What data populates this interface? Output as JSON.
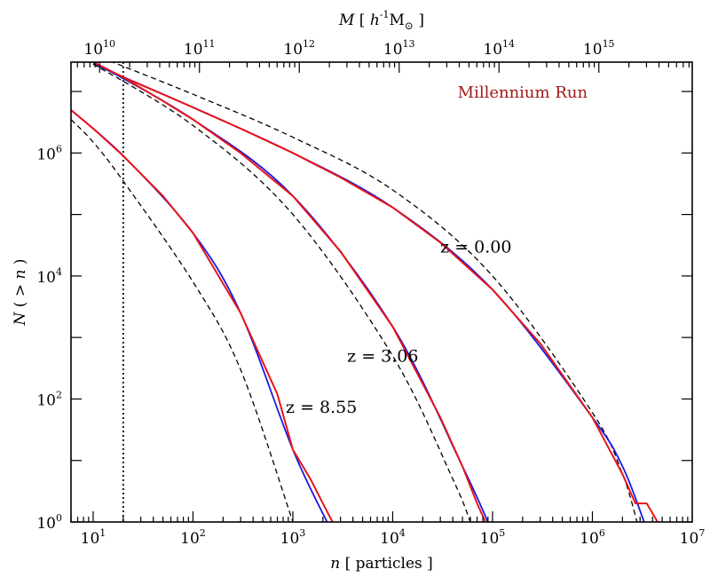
{
  "chart_data": {
    "type": "line",
    "title": "",
    "annotation_text": "Millennium Run",
    "annotation_color": "#a01a1a",
    "xlabel_var": "n",
    "xlabel_rest": "[ particles ]",
    "top_axis_var": "M",
    "top_axis_unit_open": "[",
    "top_axis_unit_h": "h",
    "top_axis_unit_exp": "-1",
    "top_axis_unit_M": "M",
    "top_axis_unit_sun": "⊙",
    "top_axis_unit_close": "]",
    "ylabel_N": "N",
    "ylabel_rest": "( > ",
    "ylabel_n": "n",
    "ylabel_close": " )",
    "x_log_scale": true,
    "y_log_scale": true,
    "xlim": [
      6,
      10000000
    ],
    "ylim": [
      1,
      30000000
    ],
    "x_ticks": [
      {
        "base": "10",
        "exp": "1",
        "value": 10
      },
      {
        "base": "10",
        "exp": "2",
        "value": 100
      },
      {
        "base": "10",
        "exp": "3",
        "value": 1000
      },
      {
        "base": "10",
        "exp": "4",
        "value": 10000
      },
      {
        "base": "10",
        "exp": "5",
        "value": 100000
      },
      {
        "base": "10",
        "exp": "6",
        "value": 1000000
      },
      {
        "base": "10",
        "exp": "7",
        "value": 10000000
      }
    ],
    "y_ticks": [
      {
        "base": "10",
        "exp": "0",
        "value": 1
      },
      {
        "base": "10",
        "exp": "2",
        "value": 100
      },
      {
        "base": "10",
        "exp": "4",
        "value": 10000
      },
      {
        "base": "10",
        "exp": "6",
        "value": 1000000
      }
    ],
    "top_ticks": [
      {
        "base": "10",
        "exp": "10",
        "n": 11.6
      },
      {
        "base": "10",
        "exp": "11",
        "n": 116
      },
      {
        "base": "10",
        "exp": "12",
        "n": 1160
      },
      {
        "base": "10",
        "exp": "13",
        "n": 11600
      },
      {
        "base": "10",
        "exp": "14",
        "n": 116000
      },
      {
        "base": "10",
        "exp": "15",
        "n": 1160000
      }
    ],
    "threshold_x": 20,
    "colors": {
      "simulation": "#e8141a",
      "fit": "#1a1ae0",
      "theory": "#000000",
      "threshold": "#000000"
    },
    "series": [
      {
        "label": "z = 0.00",
        "label_anchor": [
          30000,
          24000
        ],
        "simulation": [
          [
            10,
            30000000
          ],
          [
            20,
            17000000
          ],
          [
            50,
            9000000
          ],
          [
            100,
            5500000
          ],
          [
            300,
            2500000
          ],
          [
            1000,
            1000000
          ],
          [
            3000,
            400000
          ],
          [
            10000,
            130000
          ],
          [
            30000,
            35000
          ],
          [
            100000,
            6000
          ],
          [
            300000,
            800
          ],
          [
            1000000,
            50
          ],
          [
            2000000,
            6
          ],
          [
            2700000,
            2
          ],
          [
            3500000,
            2
          ],
          [
            4500000,
            1
          ]
        ],
        "fit": [
          [
            10,
            28000000
          ],
          [
            100,
            5500000
          ],
          [
            1000,
            1000000
          ],
          [
            10000,
            130000
          ],
          [
            100000,
            6000
          ],
          [
            1000000,
            50
          ],
          [
            2000000,
            8
          ],
          [
            3300000,
            1
          ]
        ],
        "theory": [
          [
            10,
            40000000
          ],
          [
            100,
            9000000
          ],
          [
            1000,
            1800000
          ],
          [
            10000,
            250000
          ],
          [
            100000,
            10000
          ],
          [
            1000000,
            60
          ],
          [
            2000000,
            6
          ],
          [
            2800000,
            1
          ]
        ]
      },
      {
        "label": "z = 3.06",
        "label_anchor": [
          3500,
          400
        ],
        "simulation": [
          [
            10,
            30000000
          ],
          [
            20,
            17000000
          ],
          [
            50,
            7000000
          ],
          [
            100,
            3500000
          ],
          [
            300,
            1000000
          ],
          [
            1000,
            200000
          ],
          [
            3000,
            25000
          ],
          [
            10000,
            1500
          ],
          [
            30000,
            50
          ],
          [
            50000,
            8
          ],
          [
            70000,
            2
          ],
          [
            85000,
            1
          ]
        ],
        "fit": [
          [
            10,
            30000000
          ],
          [
            100,
            3500000
          ],
          [
            1000,
            200000
          ],
          [
            10000,
            1500
          ],
          [
            50000,
            8
          ],
          [
            90000,
            1
          ]
        ],
        "theory": [
          [
            10,
            28000000
          ],
          [
            100,
            2800000
          ],
          [
            1000,
            100000
          ],
          [
            10000,
            500
          ],
          [
            40000,
            5
          ],
          [
            60000,
            1
          ]
        ]
      },
      {
        "label": "z = 8.55",
        "label_anchor": [
          850,
          60
        ],
        "simulation": [
          [
            6,
            5000000
          ],
          [
            10,
            2500000
          ],
          [
            20,
            900000
          ],
          [
            50,
            200000
          ],
          [
            100,
            50000
          ],
          [
            300,
            2500
          ],
          [
            700,
            120
          ],
          [
            1000,
            15
          ],
          [
            1500,
            5
          ],
          [
            2000,
            2
          ],
          [
            2500,
            1
          ]
        ],
        "fit": [
          [
            6,
            5000000
          ],
          [
            20,
            900000
          ],
          [
            100,
            50000
          ],
          [
            300,
            2500
          ],
          [
            1000,
            15
          ],
          [
            2200,
            1
          ]
        ],
        "theory": [
          [
            6,
            3500000
          ],
          [
            10,
            1500000
          ],
          [
            20,
            350000
          ],
          [
            100,
            8000
          ],
          [
            300,
            300
          ],
          [
            1000,
            1
          ]
        ]
      }
    ]
  }
}
